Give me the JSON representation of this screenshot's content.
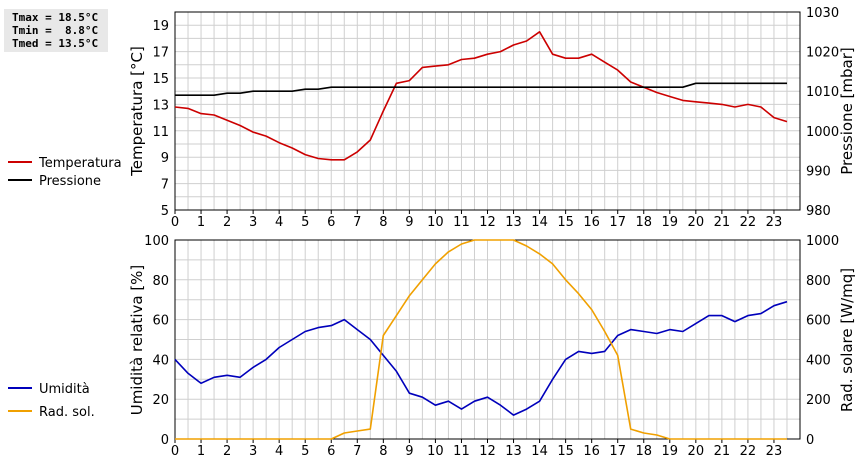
{
  "stats": {
    "tmax": "Tmax = 18.5°C",
    "tmin": "Tmin =  8.8°C",
    "tmed": "Tmed = 13.5°C"
  },
  "colors": {
    "temperatura": "#cc0000",
    "pressione": "#000000",
    "umidita": "#0000bb",
    "radsol": "#f0a000",
    "grid": "#cfcfcf"
  },
  "chart_data": [
    {
      "type": "line",
      "xlabel": "",
      "ylabel": "Temperatura [°C]",
      "y2label": "Pressione [mbar]",
      "xlim": [
        0,
        24
      ],
      "ylim": [
        5,
        20
      ],
      "y2lim": [
        980,
        1030
      ],
      "xticks": [
        "0",
        "1",
        "2",
        "3",
        "4",
        "5",
        "6",
        "7",
        "8",
        "9",
        "10",
        "11",
        "12",
        "13",
        "14",
        "15",
        "16",
        "17",
        "18",
        "19",
        "20",
        "21",
        "22",
        "23"
      ],
      "yticks": [
        "5",
        "7",
        "9",
        "11",
        "13",
        "15",
        "17",
        "19"
      ],
      "y2ticks": [
        "980",
        "990",
        "1000",
        "1010",
        "1020",
        "1030"
      ],
      "grid": true,
      "legend": "left",
      "series": [
        {
          "name": "Temperatura",
          "axis": "left",
          "color": "#cc0000",
          "x": [
            0,
            0.5,
            1,
            1.5,
            2,
            2.5,
            3,
            3.5,
            4,
            4.5,
            5,
            5.5,
            6,
            6.5,
            7,
            7.5,
            8,
            8.5,
            9,
            9.5,
            10,
            10.5,
            11,
            11.5,
            12,
            12.5,
            13,
            13.5,
            14,
            14.5,
            15,
            15.5,
            16,
            16.5,
            17,
            17.5,
            18,
            18.5,
            19,
            19.5,
            20,
            20.5,
            21,
            21.5,
            22,
            22.5,
            23,
            23.5
          ],
          "y": [
            12.8,
            12.7,
            12.3,
            12.2,
            11.8,
            11.4,
            10.9,
            10.6,
            10.1,
            9.7,
            9.2,
            8.9,
            8.8,
            8.8,
            9.4,
            10.3,
            12.5,
            14.6,
            14.8,
            15.8,
            15.9,
            16.0,
            16.4,
            16.5,
            16.8,
            17.0,
            17.5,
            17.8,
            18.5,
            16.8,
            16.5,
            16.5,
            16.8,
            16.2,
            15.6,
            14.7,
            14.3,
            13.9,
            13.6,
            13.3,
            13.2,
            13.1,
            13.0,
            12.8,
            13.0,
            12.8,
            12.0,
            11.7
          ]
        },
        {
          "name": "Pressione",
          "axis": "right",
          "color": "#000000",
          "x": [
            0,
            1,
            1.5,
            2,
            2.5,
            3,
            3.5,
            4,
            4.5,
            5,
            5.5,
            6,
            6.5,
            7,
            19,
            19.5,
            20,
            20.5,
            21,
            23.5
          ],
          "y": [
            1009,
            1009,
            1009,
            1009.5,
            1009.5,
            1010,
            1010,
            1010,
            1010,
            1010.5,
            1010.5,
            1011,
            1011,
            1011,
            1011,
            1011,
            1012,
            1012,
            1012,
            1012
          ]
        }
      ]
    },
    {
      "type": "line",
      "xlabel": "",
      "ylabel": "Umidità relativa [%]",
      "y2label": "Rad. solare [W/mq]",
      "xlim": [
        0,
        24
      ],
      "ylim": [
        0,
        100
      ],
      "y2lim": [
        0,
        1000
      ],
      "xticks": [
        "0",
        "1",
        "2",
        "3",
        "4",
        "5",
        "6",
        "7",
        "8",
        "9",
        "10",
        "11",
        "12",
        "13",
        "14",
        "15",
        "16",
        "17",
        "18",
        "19",
        "20",
        "21",
        "22",
        "23"
      ],
      "yticks": [
        "0",
        "20",
        "40",
        "60",
        "80",
        "100"
      ],
      "y2ticks": [
        "0",
        "200",
        "400",
        "600",
        "800",
        "1000"
      ],
      "grid": true,
      "legend": "left",
      "series": [
        {
          "name": "Umidità",
          "axis": "left",
          "color": "#0000bb",
          "x": [
            0,
            0.5,
            1,
            1.5,
            2,
            2.5,
            3,
            3.5,
            4,
            4.5,
            5,
            5.5,
            6,
            6.5,
            7,
            7.5,
            8,
            8.5,
            9,
            9.5,
            10,
            10.5,
            11,
            11.5,
            12,
            12.5,
            13,
            13.5,
            14,
            14.5,
            15,
            15.5,
            16,
            16.5,
            17,
            17.5,
            18,
            18.5,
            19,
            19.5,
            20,
            20.5,
            21,
            21.5,
            22,
            22.5,
            23,
            23.5
          ],
          "y": [
            40,
            33,
            28,
            31,
            32,
            31,
            36,
            40,
            46,
            50,
            54,
            56,
            57,
            60,
            55,
            50,
            42,
            34,
            23,
            21,
            17,
            19,
            15,
            19,
            21,
            17,
            12,
            15,
            19,
            30,
            40,
            44,
            43,
            44,
            52,
            55,
            54,
            53,
            55,
            54,
            58,
            62,
            62,
            59,
            62,
            63,
            67,
            69
          ]
        },
        {
          "name": "Rad. sol.",
          "axis": "right",
          "color": "#f0a000",
          "x": [
            0,
            1,
            2,
            3,
            4,
            5,
            6,
            6.5,
            7,
            7.5,
            8,
            8.5,
            9,
            9.5,
            10,
            10.5,
            11,
            11.5,
            12,
            12.5,
            13,
            13.5,
            14,
            14.5,
            15,
            15.5,
            16,
            16.5,
            17,
            17.5,
            18,
            18.5,
            19,
            19.5,
            20,
            21,
            22,
            23,
            23.5
          ],
          "y": [
            0,
            0,
            0,
            0,
            0,
            0,
            0,
            30,
            40,
            50,
            520,
            620,
            720,
            800,
            880,
            940,
            980,
            1000,
            1000,
            1000,
            1000,
            970,
            930,
            880,
            800,
            730,
            650,
            540,
            420,
            50,
            30,
            20,
            0,
            0,
            0,
            0,
            0,
            0,
            0
          ]
        }
      ]
    }
  ]
}
